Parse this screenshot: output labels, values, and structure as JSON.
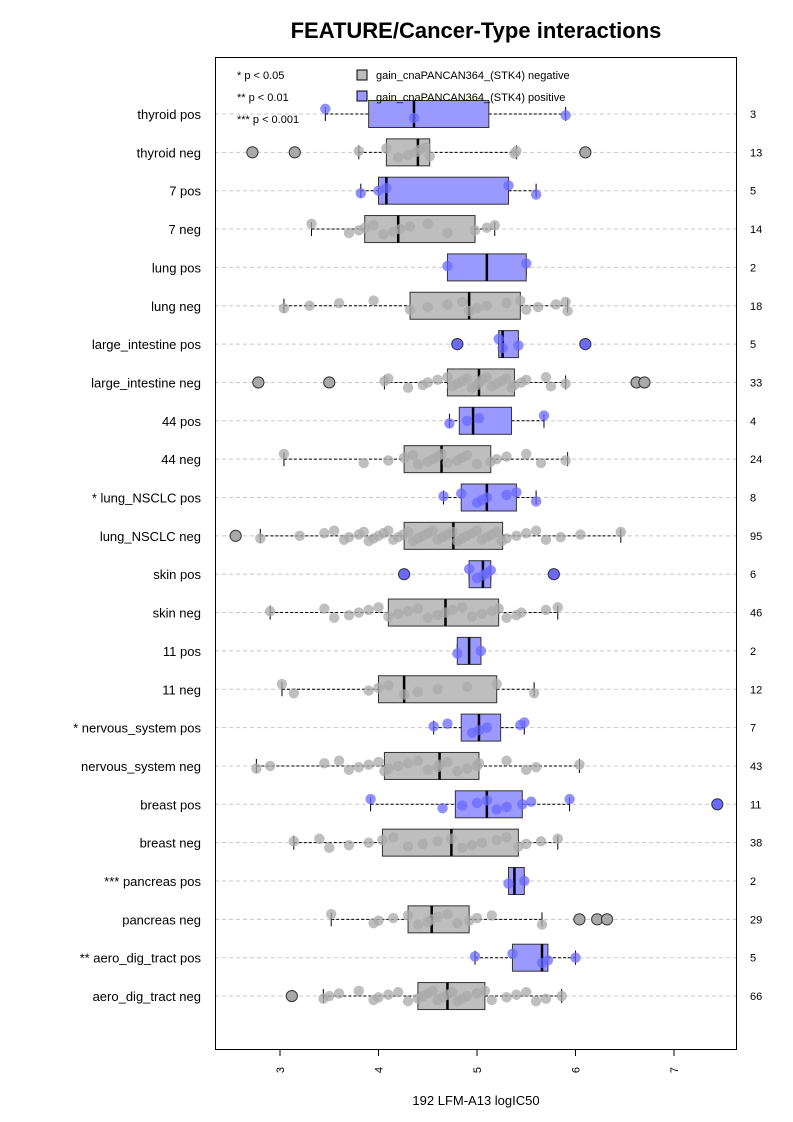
{
  "chart_data": {
    "type": "boxplot",
    "title": "FEATURE/Cancer-Type interactions",
    "xlabel": "192 LFM-A13 logIC50",
    "xlim": [
      2.35,
      7.65
    ],
    "xticks": [
      "3",
      "4",
      "5",
      "6",
      "7"
    ],
    "orientation": "horizontal",
    "grid": "horizontal dashed",
    "significance_legend": [
      "* p < 0.05",
      "** p < 0.01",
      "*** p < 0.001"
    ],
    "series_legend": [
      {
        "name": "gain_cnaPANCAN364_(STK4) negative",
        "color": "#bebebe"
      },
      {
        "name": "gain_cnaPANCAN364_(STK4) positive",
        "color": "#9999ff"
      }
    ],
    "colors": {
      "neg_box": "#bebebe",
      "pos_box": "#9999ff",
      "neg_point": "#a9a9a9",
      "pos_point": "#6a6aff"
    },
    "rows": [
      {
        "label": "thyroid pos",
        "group": "pos",
        "n": "3",
        "q1": 3.9,
        "median": 4.36,
        "q3": 5.12,
        "wlo": 3.46,
        "whi": 5.9,
        "points": [
          3.46,
          4.36,
          5.9
        ],
        "outliers": []
      },
      {
        "label": "thyroid neg",
        "group": "neg",
        "n": "13",
        "q1": 4.08,
        "median": 4.4,
        "q3": 4.52,
        "wlo": 3.8,
        "whi": 5.4,
        "points": [
          3.8,
          4.08,
          4.2,
          4.3,
          4.38,
          4.42,
          4.48,
          4.52,
          5.38,
          5.4
        ],
        "outliers": [
          2.72,
          3.15,
          6.1
        ]
      },
      {
        "label": "7 pos",
        "group": "pos",
        "n": "5",
        "q1": 4.0,
        "median": 4.08,
        "q3": 5.32,
        "wlo": 3.82,
        "whi": 5.6,
        "points": [
          3.82,
          4.0,
          4.08,
          5.32,
          5.6
        ],
        "outliers": []
      },
      {
        "label": "7 neg",
        "group": "neg",
        "n": "14",
        "q1": 3.86,
        "median": 4.2,
        "q3": 4.98,
        "wlo": 3.32,
        "whi": 5.18,
        "points": [
          3.32,
          3.7,
          3.8,
          3.86,
          3.95,
          4.05,
          4.15,
          4.22,
          4.32,
          4.5,
          4.7,
          4.98,
          5.1,
          5.18
        ],
        "outliers": []
      },
      {
        "label": "lung pos",
        "group": "pos",
        "n": "2",
        "q1": 4.7,
        "median": 5.1,
        "q3": 5.5,
        "wlo": 4.7,
        "whi": 5.5,
        "points": [
          4.7,
          5.5
        ],
        "outliers": []
      },
      {
        "label": "lung neg",
        "group": "neg",
        "n": "18",
        "q1": 4.32,
        "median": 4.92,
        "q3": 5.44,
        "wlo": 3.04,
        "whi": 5.92,
        "points": [
          3.04,
          3.3,
          3.6,
          3.95,
          4.32,
          4.5,
          4.7,
          4.85,
          4.92,
          5.0,
          5.1,
          5.3,
          5.44,
          5.5,
          5.62,
          5.8,
          5.9,
          5.92
        ],
        "outliers": []
      },
      {
        "label": "large_intestine pos",
        "group": "pos",
        "n": "5",
        "q1": 5.22,
        "median": 5.26,
        "q3": 5.42,
        "wlo": 5.22,
        "whi": 5.42,
        "points": [
          5.22,
          5.26,
          5.42
        ],
        "outliers": [
          4.8,
          6.1
        ]
      },
      {
        "label": "large_intestine neg",
        "group": "neg",
        "n": "33",
        "q1": 4.7,
        "median": 5.02,
        "q3": 5.38,
        "wlo": 4.06,
        "whi": 5.9,
        "points": [
          4.06,
          4.1,
          4.3,
          4.45,
          4.5,
          4.6,
          4.7,
          4.75,
          4.8,
          4.85,
          4.9,
          4.95,
          5.0,
          5.02,
          5.05,
          5.1,
          5.15,
          5.2,
          5.25,
          5.3,
          5.35,
          5.38,
          5.45,
          5.5,
          5.7,
          5.75,
          5.9
        ],
        "outliers": [
          2.78,
          3.5,
          6.62,
          6.7
        ]
      },
      {
        "label": "44 pos",
        "group": "pos",
        "n": "4",
        "q1": 4.82,
        "median": 4.96,
        "q3": 5.35,
        "wlo": 4.72,
        "whi": 5.68,
        "points": [
          4.72,
          4.9,
          5.02,
          5.68
        ],
        "outliers": []
      },
      {
        "label": "44 neg",
        "group": "neg",
        "n": "24",
        "q1": 4.26,
        "median": 4.64,
        "q3": 5.14,
        "wlo": 3.04,
        "whi": 5.92,
        "points": [
          3.04,
          3.85,
          4.1,
          4.26,
          4.35,
          4.4,
          4.5,
          4.55,
          4.6,
          4.64,
          4.7,
          4.8,
          4.85,
          4.9,
          5.0,
          5.14,
          5.2,
          5.3,
          5.5,
          5.65,
          5.9
        ],
        "outliers": []
      },
      {
        "label": "* lung_NSCLC pos",
        "group": "pos",
        "n": "8",
        "q1": 4.84,
        "median": 5.1,
        "q3": 5.4,
        "wlo": 4.66,
        "whi": 5.6,
        "points": [
          4.66,
          4.84,
          5.0,
          5.05,
          5.1,
          5.3,
          5.4,
          5.6
        ],
        "outliers": []
      },
      {
        "label": "lung_NSCLC neg",
        "group": "neg",
        "n": "95",
        "q1": 4.26,
        "median": 4.76,
        "q3": 5.26,
        "wlo": 2.8,
        "whi": 6.46,
        "points": [
          2.8,
          3.2,
          3.45,
          3.55,
          3.65,
          3.7,
          3.8,
          3.85,
          3.9,
          3.95,
          4.0,
          4.05,
          4.1,
          4.15,
          4.2,
          4.25,
          4.3,
          4.35,
          4.4,
          4.45,
          4.5,
          4.55,
          4.6,
          4.65,
          4.7,
          4.75,
          4.8,
          4.85,
          4.9,
          4.95,
          5.0,
          5.05,
          5.1,
          5.15,
          5.2,
          5.25,
          5.3,
          5.4,
          5.5,
          5.6,
          5.7,
          5.85,
          6.05,
          6.46
        ],
        "outliers": [
          2.55
        ]
      },
      {
        "label": "skin pos",
        "group": "pos",
        "n": "6",
        "q1": 4.92,
        "median": 5.06,
        "q3": 5.14,
        "wlo": 4.92,
        "whi": 5.14,
        "points": [
          4.92,
          5.0,
          5.06,
          5.1,
          5.14
        ],
        "outliers": [
          4.26,
          5.78
        ]
      },
      {
        "label": "skin neg",
        "group": "neg",
        "n": "46",
        "q1": 4.1,
        "median": 4.68,
        "q3": 5.22,
        "wlo": 2.9,
        "whi": 5.82,
        "points": [
          2.9,
          3.45,
          3.55,
          3.7,
          3.8,
          3.9,
          4.0,
          4.1,
          4.2,
          4.3,
          4.4,
          4.5,
          4.6,
          4.68,
          4.75,
          4.85,
          4.95,
          5.05,
          5.15,
          5.22,
          5.3,
          5.4,
          5.45,
          5.7,
          5.82
        ],
        "outliers": []
      },
      {
        "label": "11 pos",
        "group": "pos",
        "n": "2",
        "q1": 4.8,
        "median": 4.92,
        "q3": 5.04,
        "wlo": 4.8,
        "whi": 5.04,
        "points": [
          4.8,
          5.04
        ],
        "outliers": []
      },
      {
        "label": "11 neg",
        "group": "neg",
        "n": "12",
        "q1": 4.0,
        "median": 4.26,
        "q3": 5.2,
        "wlo": 3.02,
        "whi": 5.58,
        "points": [
          3.02,
          3.14,
          3.9,
          4.0,
          4.1,
          4.26,
          4.4,
          4.6,
          4.9,
          5.2,
          5.58
        ],
        "outliers": []
      },
      {
        "label": "* nervous_system pos",
        "group": "pos",
        "n": "7",
        "q1": 4.84,
        "median": 5.02,
        "q3": 5.24,
        "wlo": 4.56,
        "whi": 5.48,
        "points": [
          4.56,
          4.7,
          4.95,
          5.02,
          5.1,
          5.44,
          5.48
        ],
        "outliers": []
      },
      {
        "label": "nervous_system neg",
        "group": "neg",
        "n": "43",
        "q1": 4.06,
        "median": 4.62,
        "q3": 5.02,
        "wlo": 2.76,
        "whi": 6.04,
        "points": [
          2.76,
          2.9,
          3.45,
          3.6,
          3.7,
          3.8,
          3.9,
          4.0,
          4.06,
          4.1,
          4.2,
          4.3,
          4.4,
          4.5,
          4.6,
          4.62,
          4.7,
          4.8,
          4.9,
          5.0,
          5.02,
          5.3,
          5.5,
          5.6,
          6.04
        ],
        "outliers": []
      },
      {
        "label": "breast pos",
        "group": "pos",
        "n": "11",
        "q1": 4.78,
        "median": 5.1,
        "q3": 5.46,
        "wlo": 3.92,
        "whi": 5.94,
        "points": [
          3.92,
          4.65,
          4.85,
          5.0,
          5.1,
          5.2,
          5.3,
          5.46,
          5.55,
          5.94
        ],
        "outliers": [
          7.44
        ]
      },
      {
        "label": "breast neg",
        "group": "neg",
        "n": "38",
        "q1": 4.04,
        "median": 4.74,
        "q3": 5.42,
        "wlo": 3.14,
        "whi": 5.82,
        "points": [
          3.14,
          3.4,
          3.5,
          3.7,
          3.9,
          4.04,
          4.15,
          4.3,
          4.45,
          4.6,
          4.74,
          4.85,
          4.95,
          5.05,
          5.2,
          5.3,
          5.42,
          5.5,
          5.65,
          5.82
        ],
        "outliers": []
      },
      {
        "label": "*** pancreas pos",
        "group": "pos",
        "n": "2",
        "q1": 5.32,
        "median": 5.38,
        "q3": 5.48,
        "wlo": 5.32,
        "whi": 5.48,
        "points": [
          5.32,
          5.48
        ],
        "outliers": []
      },
      {
        "label": "pancreas neg",
        "group": "neg",
        "n": "29",
        "q1": 4.3,
        "median": 4.54,
        "q3": 4.92,
        "wlo": 3.52,
        "whi": 5.66,
        "points": [
          3.52,
          3.95,
          4.0,
          4.15,
          4.3,
          4.4,
          4.5,
          4.54,
          4.6,
          4.7,
          4.8,
          4.92,
          5.0,
          5.15,
          5.66
        ],
        "outliers": [
          6.04,
          6.22,
          6.32
        ]
      },
      {
        "label": "** aero_dig_tract pos",
        "group": "pos",
        "n": "5",
        "q1": 5.36,
        "median": 5.66,
        "q3": 5.72,
        "wlo": 4.98,
        "whi": 6.0,
        "points": [
          4.98,
          5.36,
          5.66,
          5.72,
          6.0
        ],
        "outliers": []
      },
      {
        "label": "aero_dig_tract neg",
        "group": "neg",
        "n": "66",
        "q1": 4.4,
        "median": 4.7,
        "q3": 5.08,
        "wlo": 3.44,
        "whi": 5.86,
        "points": [
          3.44,
          3.5,
          3.6,
          3.8,
          3.95,
          4.0,
          4.1,
          4.2,
          4.3,
          4.4,
          4.45,
          4.5,
          4.55,
          4.6,
          4.65,
          4.7,
          4.75,
          4.8,
          4.85,
          4.9,
          5.0,
          5.08,
          5.15,
          5.3,
          5.4,
          5.5,
          5.6,
          5.7,
          5.86
        ],
        "outliers": [
          3.12
        ]
      }
    ]
  }
}
